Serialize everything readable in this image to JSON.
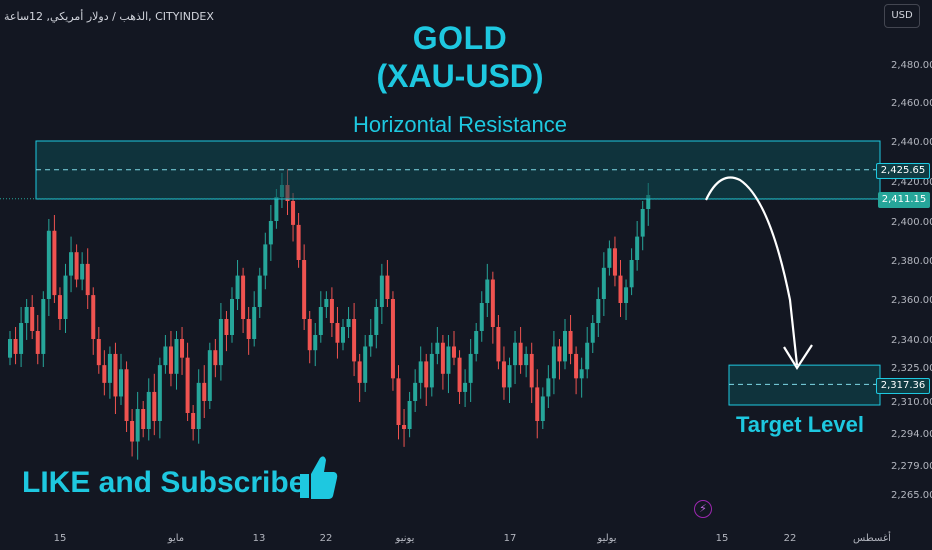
{
  "header": {
    "symbol_text": "الذهب / دولار أمريكي, 12ساعة, CITYINDEX",
    "currency_button": "USD"
  },
  "annotations": {
    "title_line1": "GOLD",
    "title_line2": "(XAU-USD)",
    "resistance_label": "Horizontal Resistance",
    "target_label": "Target Level",
    "promo_text": "LIKE and Subscribe",
    "thumb_icon": "thumbs-up-icon",
    "bolt_icon": "lightning-icon"
  },
  "colors": {
    "background": "#131722",
    "up": "#26a69a",
    "down": "#ef5350",
    "accent": "#1ec8e0",
    "zone_fill": "#0d4a52"
  },
  "chart_data": {
    "type": "candlestick",
    "y_ticks": [
      "2,480.00",
      "2,460.00",
      "2,440.00",
      "2,420.00",
      "2,400.00",
      "2,380.00",
      "2,360.00",
      "2,340.00",
      "2,325.00",
      "2,310.00",
      "2,294.00",
      "2,279.00",
      "2,265.00"
    ],
    "x_ticks": [
      "15",
      "مايو",
      "13",
      "22",
      "يونيو",
      "17",
      "يوليو",
      "15",
      "22",
      "أغسطس"
    ],
    "price_tags": [
      {
        "label": "2,425.65",
        "kind": "outline"
      },
      {
        "label": "2,411.15",
        "kind": "green"
      },
      {
        "label": "2,317.36",
        "kind": "outline"
      }
    ],
    "resistance_zone": [
      2411,
      2440
    ],
    "resistance_line": 2425.65,
    "target_level": 2317.36,
    "target_zone": [
      2308,
      2326
    ]
  }
}
